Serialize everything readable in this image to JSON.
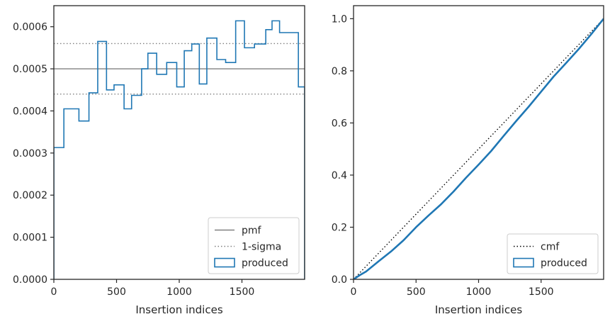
{
  "chart_data": [
    {
      "type": "step",
      "xlabel": "Insertion indices",
      "ylabel": "",
      "xlim": [
        0,
        2000
      ],
      "ylim": [
        0,
        0.00065
      ],
      "xticks": [
        0,
        500,
        1000,
        1500
      ],
      "xtick_labels": [
        "0",
        "500",
        "1000",
        "1500"
      ],
      "yticks": [
        0,
        0.0001,
        0.0002,
        0.0003,
        0.0004,
        0.0005,
        0.0006
      ],
      "ytick_labels": [
        "0.0000",
        "0.0001",
        "0.0002",
        "0.0003",
        "0.0004",
        "0.0005",
        "0.0006"
      ],
      "grid": false,
      "legend_position": "lower right",
      "series": [
        {
          "name": "pmf",
          "style": "solid",
          "color": "#808080",
          "y": 0.0005
        },
        {
          "name": "1-sigma",
          "style": "dotted",
          "color": "#808080",
          "y": [
            0.00044,
            0.00056
          ]
        },
        {
          "name": "produced",
          "style": "step",
          "color": "#1f77b4",
          "bin_edges": [
            0,
            80,
            200,
            280,
            350,
            420,
            480,
            560,
            620,
            700,
            750,
            820,
            900,
            980,
            1040,
            1100,
            1160,
            1220,
            1300,
            1370,
            1450,
            1520,
            1600,
            1690,
            1740,
            1800,
            1860,
            1920,
            1950,
            2000
          ],
          "values": [
            0.000313,
            0.000405,
            0.000376,
            0.000443,
            0.000565,
            0.00045,
            0.000462,
            0.000405,
            0.000437,
            0.0005,
            0.000537,
            0.000487,
            0.000515,
            0.000457,
            0.000543,
            0.000559,
            0.000464,
            0.000573,
            0.000522,
            0.000515,
            0.000614,
            0.00055,
            0.000559,
            0.000593,
            0.000614,
            0.000586,
            0.000586,
            0.000586,
            0.000457
          ]
        }
      ]
    },
    {
      "type": "line",
      "xlabel": "Insertion indices",
      "ylabel": "",
      "xlim": [
        0,
        2000
      ],
      "ylim": [
        0,
        1.05
      ],
      "xticks": [
        0,
        500,
        1000,
        1500
      ],
      "xtick_labels": [
        "0",
        "500",
        "1000",
        "1500"
      ],
      "yticks": [
        0,
        0.2,
        0.4,
        0.6,
        0.8,
        1.0
      ],
      "ytick_labels": [
        "0.0",
        "0.2",
        "0.4",
        "0.6",
        "0.8",
        "1.0"
      ],
      "grid": false,
      "legend_position": "lower right",
      "series": [
        {
          "name": "cmf",
          "style": "dotted",
          "color": "#000000",
          "x": [
            0,
            2000
          ],
          "y": [
            0,
            1.0
          ]
        },
        {
          "name": "produced",
          "style": "step",
          "color": "#1f77b4",
          "x": [
            0,
            50,
            100,
            200,
            300,
            400,
            500,
            600,
            700,
            800,
            900,
            1000,
            1100,
            1200,
            1300,
            1400,
            1500,
            1600,
            1700,
            1800,
            1900,
            2000
          ],
          "y": [
            0,
            0.016,
            0.03,
            0.069,
            0.107,
            0.15,
            0.2,
            0.245,
            0.288,
            0.337,
            0.39,
            0.44,
            0.492,
            0.55,
            0.607,
            0.662,
            0.72,
            0.778,
            0.83,
            0.883,
            0.94,
            1.0
          ]
        }
      ]
    }
  ]
}
